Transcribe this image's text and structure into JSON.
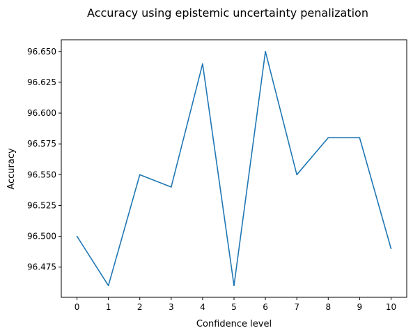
{
  "chart_data": {
    "type": "line",
    "title": "Accuracy using epistemic uncertainty penalization",
    "xlabel": "Confidence level",
    "ylabel": "Accuracy",
    "x": [
      0,
      1,
      2,
      3,
      4,
      5,
      6,
      7,
      8,
      9,
      10
    ],
    "series": [
      {
        "values": [
          96.5,
          96.46,
          96.55,
          96.54,
          96.64,
          96.46,
          96.65,
          96.55,
          96.58,
          96.58,
          96.49
        ],
        "color": "#1f77b4"
      }
    ],
    "xlim": [
      -0.5,
      10.5
    ],
    "ylim": [
      96.4505,
      96.6595
    ],
    "xticks": [
      "0",
      "1",
      "2",
      "3",
      "4",
      "5",
      "6",
      "7",
      "8",
      "9",
      "10"
    ],
    "yticks": [
      "96.475",
      "96.500",
      "96.525",
      "96.550",
      "96.575",
      "96.600",
      "96.625",
      "96.650"
    ],
    "grid": false,
    "legend": "none"
  }
}
